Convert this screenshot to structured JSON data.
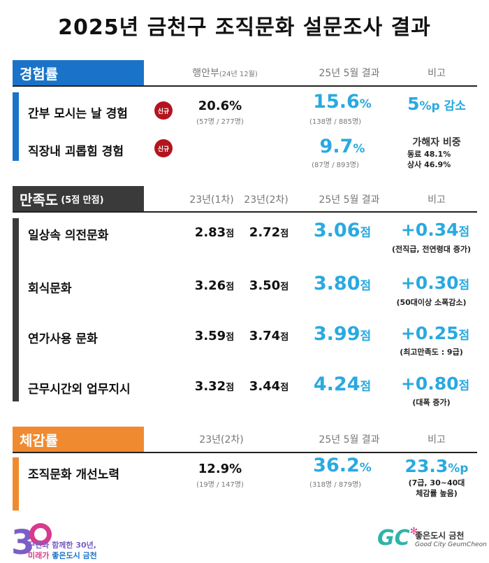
{
  "title": "2025년 금천구 조직문화 설문조사 결과",
  "colors": {
    "blue": "#1a73c9",
    "dark": "#3a3a3a",
    "orange": "#f08a30",
    "accent": "#29a9e0",
    "badge": "#b4141e"
  },
  "sec1": {
    "name": "경험률",
    "h1": "행안부",
    "h1_note": "(24년 12월)",
    "h2": "25년 5월 결과",
    "h3": "비고",
    "rows": [
      {
        "label": "간부 모시는 날 경험",
        "badge": "신규",
        "base": "20.6%",
        "base_sub": "(57명 / 277명)",
        "result_num": "15.6",
        "result_unit": "%",
        "result_sub": "(138명 / 885명)",
        "note_num": "5",
        "note_unit": "%p 감소"
      },
      {
        "label": "직장내 괴롭힘 경험",
        "badge": "신규",
        "result_num": "9.7",
        "result_unit": "%",
        "result_sub": "(87명 / 893명)",
        "note_title": "가해자 비중",
        "note_l1": "동료 48.1%",
        "note_l2": "상사 46.9%"
      }
    ]
  },
  "sec2": {
    "name": "만족도",
    "name_note": "(5점 만점)",
    "h1": "23년(1차)",
    "h2": "23년(2차)",
    "h3": "25년 5월 결과",
    "h4": "비고",
    "rows": [
      {
        "label": "일상속 의전문화",
        "v1": "2.83",
        "v2": "2.72",
        "v3": "3.06",
        "diff": "+0.34",
        "unit": "점",
        "note": "(전직급, 전연령대 증가)"
      },
      {
        "label": "회식문화",
        "v1": "3.26",
        "v2": "3.50",
        "v3": "3.80",
        "diff": "+0.30",
        "unit": "점",
        "note": "(50대이상 소폭감소)"
      },
      {
        "label": "연가사용 문화",
        "v1": "3.59",
        "v2": "3.74",
        "v3": "3.99",
        "diff": "+0.25",
        "unit": "점",
        "note": "(최고만족도 : 9급)"
      },
      {
        "label": "근무시간외 업무지시",
        "v1": "3.32",
        "v2": "3.44",
        "v3": "4.24",
        "diff": "+0.80",
        "unit": "점",
        "note": "(대폭 증가)"
      }
    ]
  },
  "sec3": {
    "name": "체감률",
    "h1": "23년(2차)",
    "h2": "25년 5월 결과",
    "h3": "비고",
    "row": {
      "label": "조직문화 개선노력",
      "base": "12.9%",
      "base_sub": "(19명 / 147명)",
      "result_num": "36.2",
      "result_unit": "%",
      "result_sub": "(318명 / 879명)",
      "note_num": "23.3",
      "note_unit": "%p",
      "note_l1": "(7급, 30~40대",
      "note_l2": "체감률 높음)"
    }
  },
  "footer": {
    "left_l1": "구민과 함께한 30년,",
    "left_l2a": "미래가 ",
    "left_l2b": "좋은도시 금천",
    "right_main": "좋은도시 금천",
    "right_sub": "Good City GeumCheon",
    "right_logo": "GC"
  }
}
